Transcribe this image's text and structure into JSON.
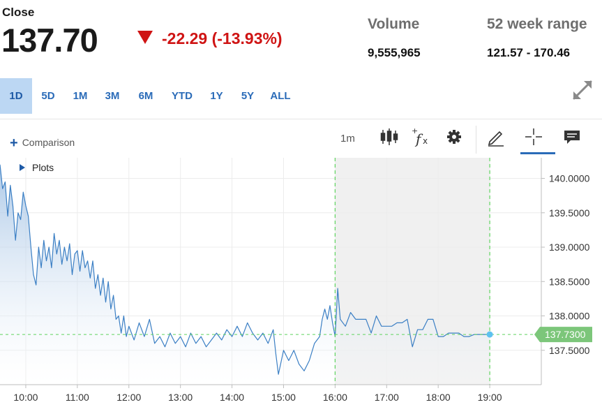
{
  "quote": {
    "close_label": "Close",
    "close_price": "137.70",
    "change": "-22.29 (-13.93%)",
    "change_direction": "down",
    "volume_label": "Volume",
    "volume_value": "9,555,965",
    "range_label": "52 week range",
    "range_value": "121.57 - 170.46"
  },
  "range_buttons": [
    {
      "label": "1D",
      "active": true
    },
    {
      "label": "5D",
      "active": false
    },
    {
      "label": "1M",
      "active": false
    },
    {
      "label": "3M",
      "active": false
    },
    {
      "label": "6M",
      "active": false
    },
    {
      "label": "YTD",
      "active": false
    },
    {
      "label": "1Y",
      "active": false
    },
    {
      "label": "5Y",
      "active": false
    },
    {
      "label": "ALL",
      "active": false
    }
  ],
  "toolbar": {
    "comparison_label": "Comparison",
    "interval_label": "1m",
    "icons": [
      "candlestick-icon",
      "indicator-fx-icon",
      "gear-icon",
      "pencil-draw-icon",
      "crosshair-icon",
      "annotation-icon"
    ],
    "expand_icon": "expand-icon"
  },
  "plots_label": "Plots",
  "colors": {
    "line": "#3b7fc4",
    "down": "#cf1414",
    "last_price_tag": "#7cc67a",
    "session_line": "#5fd35f",
    "after_hours_shade": "#f0f0f0"
  },
  "chart_data": {
    "type": "area",
    "ylim": [
      137.0,
      140.3
    ],
    "yticks": [
      "140.0000",
      "139.5000",
      "139.0000",
      "138.5000",
      "138.0000",
      "137.5000"
    ],
    "ytick_values": [
      140.0,
      139.5,
      139.0,
      138.5,
      138.0,
      137.5
    ],
    "xticks": [
      "10:00",
      "11:00",
      "12:00",
      "13:00",
      "14:00",
      "15:00",
      "16:00",
      "17:00",
      "18:00",
      "19:00"
    ],
    "xtick_hours": [
      10,
      11,
      12,
      13,
      14,
      15,
      16,
      17,
      18,
      19
    ],
    "xlim_hours": [
      9.5,
      20.0
    ],
    "session_markers_hours": [
      16.0,
      19.0
    ],
    "after_hours_shaded": [
      16.0,
      19.0
    ],
    "last_price": 137.73,
    "last_price_label": "137.7300",
    "series": [
      {
        "points": [
          [
            9.5,
            140.2
          ],
          [
            9.55,
            139.85
          ],
          [
            9.6,
            139.95
          ],
          [
            9.65,
            139.45
          ],
          [
            9.7,
            139.9
          ],
          [
            9.75,
            139.6
          ],
          [
            9.8,
            139.1
          ],
          [
            9.85,
            139.5
          ],
          [
            9.9,
            139.4
          ],
          [
            9.95,
            139.8
          ],
          [
            10.0,
            139.6
          ],
          [
            10.05,
            139.45
          ],
          [
            10.1,
            139.0
          ],
          [
            10.15,
            138.6
          ],
          [
            10.2,
            138.45
          ],
          [
            10.25,
            139.0
          ],
          [
            10.3,
            138.7
          ],
          [
            10.35,
            139.1
          ],
          [
            10.4,
            138.8
          ],
          [
            10.45,
            139.0
          ],
          [
            10.5,
            138.7
          ],
          [
            10.55,
            139.2
          ],
          [
            10.6,
            138.9
          ],
          [
            10.65,
            139.1
          ],
          [
            10.7,
            138.75
          ],
          [
            10.75,
            139.0
          ],
          [
            10.8,
            138.8
          ],
          [
            10.85,
            139.05
          ],
          [
            10.9,
            138.6
          ],
          [
            10.95,
            138.9
          ],
          [
            11.0,
            138.95
          ],
          [
            11.05,
            138.65
          ],
          [
            11.1,
            138.95
          ],
          [
            11.15,
            138.7
          ],
          [
            11.2,
            138.8
          ],
          [
            11.25,
            138.55
          ],
          [
            11.3,
            138.8
          ],
          [
            11.35,
            138.4
          ],
          [
            11.4,
            138.6
          ],
          [
            11.45,
            138.3
          ],
          [
            11.5,
            138.55
          ],
          [
            11.55,
            138.2
          ],
          [
            11.6,
            138.5
          ],
          [
            11.65,
            138.1
          ],
          [
            11.7,
            138.3
          ],
          [
            11.75,
            137.95
          ],
          [
            11.8,
            138.0
          ],
          [
            11.85,
            137.75
          ],
          [
            11.9,
            138.0
          ],
          [
            11.95,
            137.7
          ],
          [
            12.0,
            137.85
          ],
          [
            12.1,
            137.65
          ],
          [
            12.2,
            137.9
          ],
          [
            12.3,
            137.7
          ],
          [
            12.4,
            137.95
          ],
          [
            12.5,
            137.6
          ],
          [
            12.6,
            137.7
          ],
          [
            12.7,
            137.55
          ],
          [
            12.8,
            137.75
          ],
          [
            12.9,
            137.6
          ],
          [
            13.0,
            137.7
          ],
          [
            13.1,
            137.55
          ],
          [
            13.2,
            137.75
          ],
          [
            13.3,
            137.6
          ],
          [
            13.4,
            137.7
          ],
          [
            13.5,
            137.55
          ],
          [
            13.6,
            137.65
          ],
          [
            13.7,
            137.75
          ],
          [
            13.8,
            137.65
          ],
          [
            13.9,
            137.8
          ],
          [
            14.0,
            137.7
          ],
          [
            14.1,
            137.85
          ],
          [
            14.2,
            137.7
          ],
          [
            14.3,
            137.9
          ],
          [
            14.4,
            137.75
          ],
          [
            14.5,
            137.65
          ],
          [
            14.6,
            137.75
          ],
          [
            14.7,
            137.6
          ],
          [
            14.8,
            137.8
          ],
          [
            14.85,
            137.45
          ],
          [
            14.9,
            137.15
          ],
          [
            15.0,
            137.5
          ],
          [
            15.1,
            137.35
          ],
          [
            15.2,
            137.5
          ],
          [
            15.3,
            137.3
          ],
          [
            15.4,
            137.2
          ],
          [
            15.5,
            137.35
          ],
          [
            15.6,
            137.6
          ],
          [
            15.7,
            137.7
          ],
          [
            15.75,
            137.95
          ],
          [
            15.8,
            138.1
          ],
          [
            15.85,
            137.95
          ],
          [
            15.9,
            138.15
          ],
          [
            15.95,
            137.9
          ],
          [
            16.0,
            137.7
          ],
          [
            16.05,
            138.4
          ],
          [
            16.1,
            137.95
          ],
          [
            16.2,
            137.85
          ],
          [
            16.3,
            138.05
          ],
          [
            16.4,
            137.95
          ],
          [
            16.5,
            137.95
          ],
          [
            16.6,
            137.95
          ],
          [
            16.7,
            137.75
          ],
          [
            16.8,
            138.0
          ],
          [
            16.9,
            137.85
          ],
          [
            17.0,
            137.85
          ],
          [
            17.1,
            137.85
          ],
          [
            17.2,
            137.9
          ],
          [
            17.3,
            137.9
          ],
          [
            17.4,
            137.95
          ],
          [
            17.5,
            137.55
          ],
          [
            17.6,
            137.8
          ],
          [
            17.7,
            137.8
          ],
          [
            17.8,
            137.95
          ],
          [
            17.9,
            137.95
          ],
          [
            18.0,
            137.7
          ],
          [
            18.1,
            137.7
          ],
          [
            18.2,
            137.75
          ],
          [
            18.3,
            137.75
          ],
          [
            18.4,
            137.75
          ],
          [
            18.5,
            137.7
          ],
          [
            18.6,
            137.7
          ],
          [
            18.7,
            137.73
          ],
          [
            18.8,
            137.73
          ],
          [
            18.9,
            137.73
          ],
          [
            19.0,
            137.73
          ]
        ]
      }
    ]
  }
}
